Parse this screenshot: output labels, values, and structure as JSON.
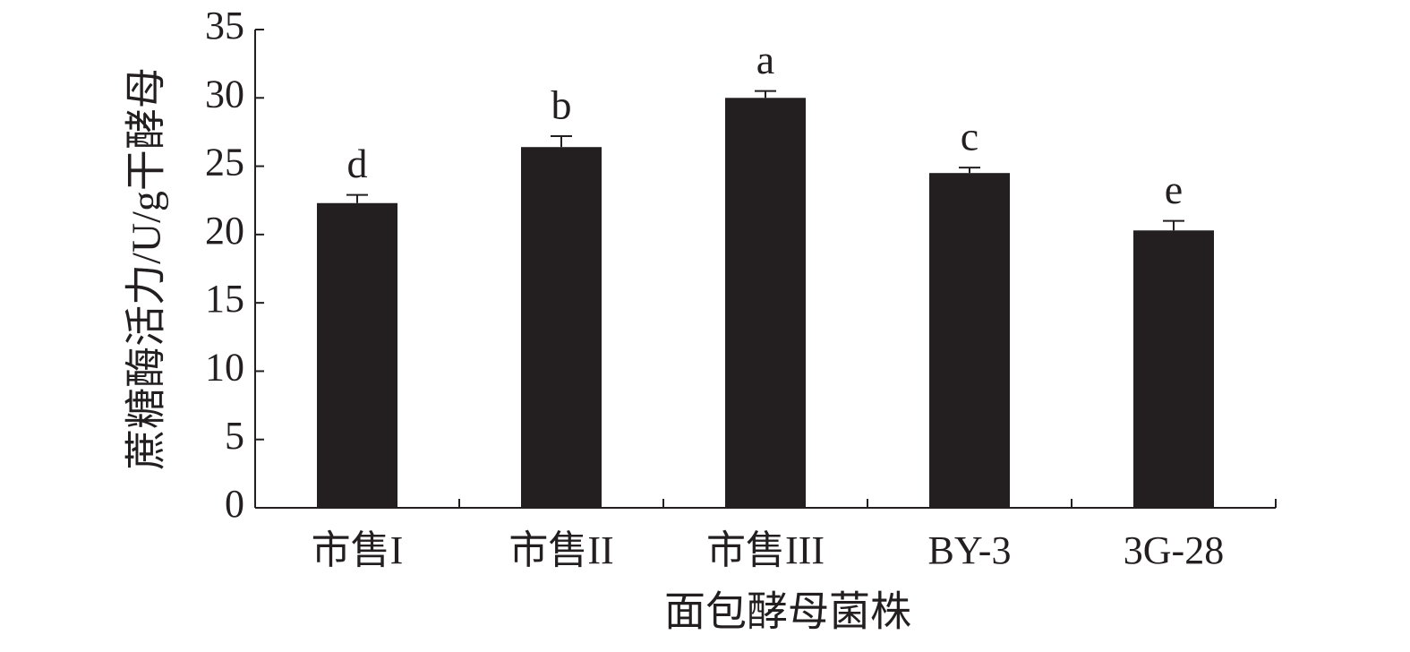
{
  "chart_data": {
    "type": "bar",
    "x_label": "面包酵母菌株",
    "y_label": "蔗糖酶活力/U/g干酵母",
    "categories": [
      "市售I",
      "市售II",
      "市售III",
      "BY-3",
      "3G-28"
    ],
    "values": [
      22.3,
      26.4,
      30.0,
      24.5,
      20.3
    ],
    "errors": [
      0.6,
      0.8,
      0.5,
      0.4,
      0.7
    ],
    "significance_labels": [
      "d",
      "b",
      "a",
      "c",
      "e"
    ],
    "color": "#231f20",
    "ylim": [
      0,
      35
    ],
    "yticks": [
      0,
      5,
      10,
      15,
      20,
      25,
      30,
      35
    ],
    "grid": false
  }
}
